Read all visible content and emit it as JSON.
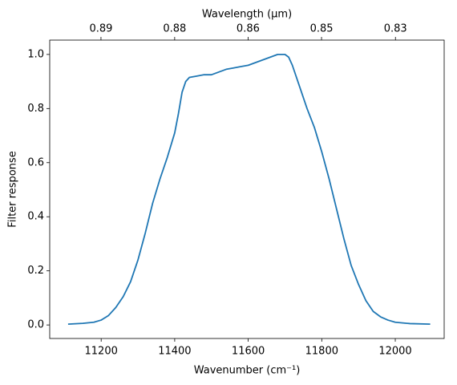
{
  "chart_data": {
    "type": "line",
    "xlabel": "Wavenumber (cm⁻¹)",
    "ylabel": "Filter response",
    "x2label": "Wavelength (μm)",
    "x": [
      11110,
      11150,
      11180,
      11200,
      11220,
      11240,
      11260,
      11280,
      11300,
      11320,
      11340,
      11360,
      11380,
      11400,
      11410,
      11420,
      11430,
      11440,
      11460,
      11480,
      11500,
      11520,
      11540,
      11560,
      11580,
      11600,
      11620,
      11640,
      11660,
      11680,
      11700,
      11710,
      11720,
      11740,
      11760,
      11780,
      11800,
      11820,
      11840,
      11860,
      11880,
      11900,
      11920,
      11940,
      11960,
      11980,
      12000,
      12040,
      12095
    ],
    "series": [
      {
        "color": "#1f77b4",
        "values": [
          0.003,
          0.006,
          0.01,
          0.018,
          0.035,
          0.065,
          0.105,
          0.16,
          0.24,
          0.34,
          0.45,
          0.54,
          0.62,
          0.71,
          0.78,
          0.86,
          0.9,
          0.915,
          0.92,
          0.925,
          0.925,
          0.935,
          0.945,
          0.95,
          0.955,
          0.96,
          0.97,
          0.98,
          0.99,
          1.0,
          1.0,
          0.99,
          0.96,
          0.88,
          0.8,
          0.73,
          0.64,
          0.54,
          0.43,
          0.32,
          0.22,
          0.15,
          0.09,
          0.05,
          0.03,
          0.018,
          0.01,
          0.005,
          0.003
        ]
      }
    ],
    "xlim": [
      11060,
      12133
    ],
    "ylim": [
      -0.05,
      1.053
    ],
    "xticks": [
      11200,
      11400,
      11600,
      11800,
      12000
    ],
    "yticks": [
      {
        "value": 0,
        "label": "0.0"
      },
      0.2,
      0.4,
      0.6,
      0.8,
      {
        "value": 1,
        "label": "1.0"
      }
    ],
    "x2ticks": [
      {
        "value": 0.8929,
        "label": "0.89"
      },
      {
        "value": 0.8772,
        "label": "0.88"
      },
      {
        "value": 0.8621,
        "label": "0.86"
      },
      {
        "value": 0.8475,
        "label": "0.85"
      },
      {
        "value": 0.8333,
        "label": "0.83"
      }
    ]
  }
}
